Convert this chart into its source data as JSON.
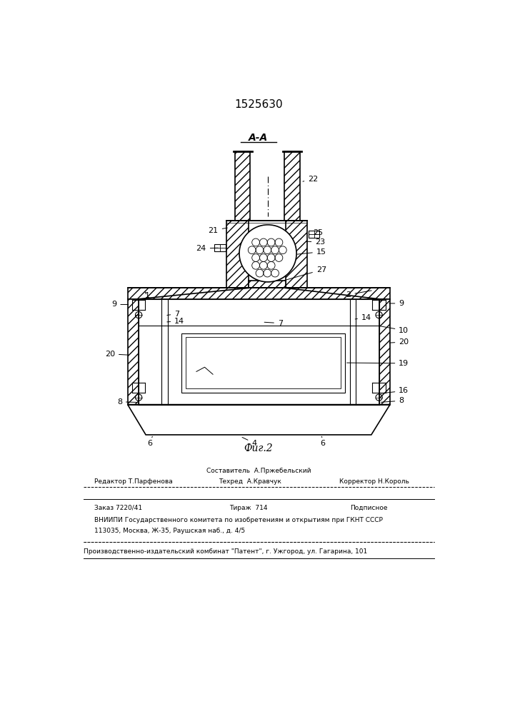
{
  "title": "1525630",
  "background_color": "#ffffff",
  "line_color": "#000000",
  "section_label": "A-A",
  "fig_label": "Фиг.2",
  "bottom_texts": {
    "line1_center": "Составитель  А.Пржебельский",
    "line2_left": "Редактор Т.Парфенова",
    "line2_center": "Техред  А.Кравчук",
    "line2_right": "Корректор Н.Король",
    "line3_left": "Заказ 7220/41",
    "line3_center": "Тираж  714",
    "line3_right": "Подписное",
    "line4": "ВНИИПИ Государственного комитета по изобретениям и открытиям при ГКНТ СССР",
    "line5": "113035, Москва, Ж-35, Раушская наб., д. 4/5",
    "line6": "Производственно-издательский комбинат \"Патент\", г. Ужгород, ул. Гагарина, 101"
  }
}
